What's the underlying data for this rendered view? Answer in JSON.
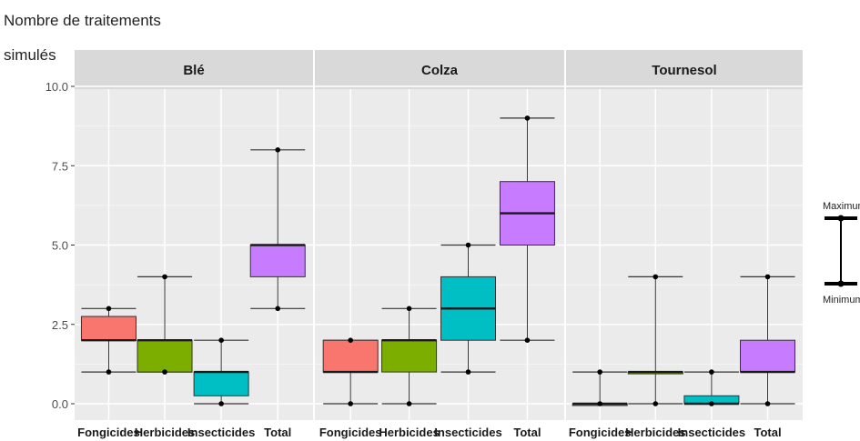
{
  "chart_data": {
    "type": "boxplot",
    "ylabel_lines": [
      "Nombre de traitements",
      "simulés"
    ],
    "ylim": [
      0,
      10
    ],
    "yticks": [
      "0.0",
      "2.5",
      "5.0",
      "7.5",
      "10.0"
    ],
    "categories": [
      "Fongicides",
      "Herbicides",
      "Insecticides",
      "Total"
    ],
    "colors": {
      "Fongicides": "#f8766d",
      "Herbicides": "#7cae00",
      "Insecticides": "#00bfc4",
      "Total": "#c77cff"
    },
    "panels": [
      {
        "name": "Blé",
        "boxes": [
          {
            "category": "Fongicides",
            "min": 1,
            "q1": 2,
            "median": 2,
            "q3": 2.75,
            "max": 3
          },
          {
            "category": "Herbicides",
            "min": 1,
            "q1": 1,
            "median": 2,
            "q3": 2,
            "max": 4
          },
          {
            "category": "Insecticides",
            "min": 0,
            "q1": 0.25,
            "median": 1,
            "q3": 1,
            "max": 2
          },
          {
            "category": "Total",
            "min": 3,
            "q1": 4,
            "median": 5,
            "q3": 5,
            "max": 8
          }
        ]
      },
      {
        "name": "Colza",
        "boxes": [
          {
            "category": "Fongicides",
            "min": 0,
            "q1": 1,
            "median": 1,
            "q3": 2,
            "max": 2
          },
          {
            "category": "Herbicides",
            "min": 0,
            "q1": 1,
            "median": 2,
            "q3": 2,
            "max": 3
          },
          {
            "category": "Insecticides",
            "min": 1,
            "q1": 2,
            "median": 3,
            "q3": 4,
            "max": 5
          },
          {
            "category": "Total",
            "min": 2,
            "q1": 5,
            "median": 6,
            "q3": 7,
            "max": 9
          }
        ]
      },
      {
        "name": "Tournesol",
        "boxes": [
          {
            "category": "Fongicides",
            "min": 0,
            "q1": 0,
            "median": 0,
            "q3": 0,
            "max": 1
          },
          {
            "category": "Herbicides",
            "min": 0,
            "q1": 1,
            "median": 1,
            "q3": 1,
            "max": 4
          },
          {
            "category": "Insecticides",
            "min": 0,
            "q1": 0,
            "median": 0,
            "q3": 0.25,
            "max": 1
          },
          {
            "category": "Total",
            "min": 0,
            "q1": 1,
            "median": 1,
            "q3": 2,
            "max": 4
          }
        ]
      }
    ],
    "legend": {
      "max_label": "Maximum",
      "min_label": "Minimum",
      "placement": "right"
    },
    "grid": true
  }
}
